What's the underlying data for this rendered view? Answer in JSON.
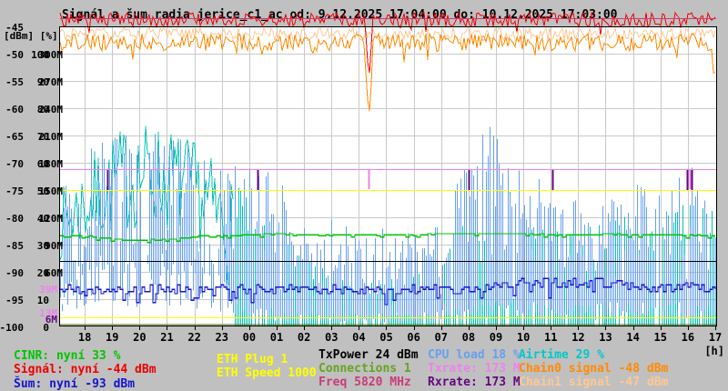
{
  "title": "Signál a šum radia jerice_c1_ac od: 9.12.2025 17:04:00 do: 10.12.2025 17:03:00",
  "colors": {
    "background": "#c0c0c0",
    "plot_background": "#ffffff",
    "grid": "#c9c9c9",
    "frame": "#000000",
    "signal_red": "#ee0000",
    "noise_blue": "#1515cc",
    "cinr_green": "#00c400",
    "cpu_blue": "#66a0f0",
    "airtime_teal": "#00c0b4",
    "eth_yellow": "#ffff00",
    "txpower_black": "#000000",
    "connections_green": "#64a41e",
    "connections_line": "#4a6b00",
    "freq_crimson": "#cc3a78",
    "txrate_violet": "#ee82ee",
    "rxrate_purple": "#65067f",
    "chain0_orange": "#ff8a00",
    "chain1_peach": "#ffc894"
  },
  "y_axis": {
    "header": "[dBm] [%]",
    "rows": [
      {
        "dbm": "-45",
        "pct": "",
        "m": ""
      },
      {
        "dbm": "-50",
        "pct": "100",
        "m": "300M"
      },
      {
        "dbm": "-55",
        "pct": "90",
        "m": "270M"
      },
      {
        "dbm": "-60",
        "pct": "80",
        "m": "240M"
      },
      {
        "dbm": "-65",
        "pct": "70",
        "m": "210M"
      },
      {
        "dbm": "-70",
        "pct": "60",
        "m": "180M"
      },
      {
        "dbm": "-75",
        "pct": "50",
        "m": "150M"
      },
      {
        "dbm": "-80",
        "pct": "40",
        "m": "120M"
      },
      {
        "dbm": "-85",
        "pct": "30",
        "m": "90M"
      },
      {
        "dbm": "-90",
        "pct": "20",
        "m": "60M"
      },
      {
        "dbm": "-95",
        "pct": "10",
        "m": ""
      },
      {
        "dbm": "-100",
        "pct": "0",
        "m": ""
      }
    ],
    "special_marks": [
      {
        "label": "39M",
        "value_m": 39,
        "color": "#ee82ee"
      },
      {
        "label": "13M",
        "value_m": 13,
        "color": "#ee82ee"
      },
      {
        "label": "6M",
        "value_m": 6,
        "color": "#65067f"
      }
    ]
  },
  "x_axis": {
    "labels": [
      "18",
      "19",
      "20",
      "21",
      "22",
      "23",
      "00",
      "01",
      "02",
      "03",
      "04",
      "05",
      "06",
      "07",
      "08",
      "09",
      "10",
      "11",
      "12",
      "13",
      "14",
      "15",
      "16",
      "17"
    ],
    "unit": "[h]"
  },
  "legend": {
    "items": [
      {
        "text": "CINR: nyní 33 %",
        "color": "#00c400"
      },
      {
        "text": "Signál: nyní -44 dBm",
        "color": "#ee0000"
      },
      {
        "text": "Šum: nyní -93 dBm",
        "color": "#1515cc"
      },
      {
        "text": "ETH Plug 1",
        "color": "#ffff00"
      },
      {
        "text": "ETH Speed 1000",
        "color": "#ffff00"
      },
      {
        "text": "TxPower 24 dBm",
        "color": "#000000"
      },
      {
        "text": "Connections 1",
        "color": "#64a41e"
      },
      {
        "text": "Freq 5820 MHz",
        "color": "#cc3a78"
      },
      {
        "text": "CPU load 18 %",
        "color": "#66a0f0"
      },
      {
        "text": "Txrate: 173 M",
        "color": "#ee82ee"
      },
      {
        "text": "Rxrate: 173 M",
        "color": "#65067f"
      },
      {
        "text": "Airtime 29 %",
        "color": "#00c8c8"
      },
      {
        "text": "Chain0 signal -48 dBm",
        "color": "#ff8a00"
      },
      {
        "text": "Chain1 signal -47 dBm",
        "color": "#ffc894"
      }
    ]
  },
  "chart_data": {
    "type": "line",
    "title": "Signál a šum radia jerice_c1_ac",
    "time_start": "9.12.2025 17:04:00",
    "time_end": "10.12.2025 17:03:00",
    "x_unit": "hours",
    "x_tick_labels": [
      "18",
      "19",
      "20",
      "21",
      "22",
      "23",
      "00",
      "01",
      "02",
      "03",
      "04",
      "05",
      "06",
      "07",
      "08",
      "09",
      "10",
      "11",
      "12",
      "13",
      "14",
      "15",
      "16",
      "17"
    ],
    "axes": {
      "dbm": {
        "min": -100,
        "max": -45,
        "label": "[dBm]"
      },
      "pct": {
        "min": 0,
        "max": 100,
        "label": "[%]"
      },
      "mbit": {
        "min": 0,
        "max": 300,
        "label": "M"
      }
    },
    "grid": true,
    "series": [
      {
        "name": "Airtime",
        "axis": "pct",
        "color": "#00c0b4",
        "style": "band-spikes",
        "now": 29,
        "band_until": 6.4,
        "hi": [
          50,
          62,
          72,
          76,
          74,
          68,
          58,
          45,
          38,
          25,
          20,
          16,
          18,
          20,
          30,
          45,
          55,
          45,
          38,
          40,
          45,
          42,
          38,
          55,
          40
        ],
        "lo": [
          24,
          28,
          33,
          36,
          34,
          30,
          18,
          0,
          0,
          0,
          0,
          0,
          0,
          0,
          0,
          0,
          0,
          0,
          0,
          0,
          0,
          0,
          0,
          0,
          0
        ]
      },
      {
        "name": "CPU load",
        "axis": "pct",
        "color": "#66a0f0",
        "style": "spikes",
        "now": 18,
        "hi": [
          55,
          68,
          72,
          70,
          72,
          66,
          60,
          60,
          55,
          38,
          40,
          36,
          38,
          34,
          42,
          70,
          75,
          60,
          48,
          46,
          52,
          55,
          48,
          62,
          40
        ],
        "lo": [
          20,
          25,
          28,
          26,
          28,
          24,
          18,
          8,
          6,
          5,
          5,
          5,
          5,
          5,
          6,
          8,
          10,
          10,
          8,
          8,
          9,
          9,
          8,
          10,
          6
        ]
      },
      {
        "name": "Šum",
        "axis": "dbm",
        "color": "#1515cc",
        "style": "noisy-steps",
        "now": -93,
        "jitter": 0.9,
        "hourly": [
          -93.2,
          -93.2,
          -93.4,
          -93.1,
          -93.2,
          -93.4,
          -93.1,
          -93.5,
          -93.3,
          -93.1,
          -93.3,
          -93.4,
          -93.2,
          -93.3,
          -93.1,
          -93.2,
          -92.3,
          -91.8,
          -92.0,
          -92.2,
          -91.9,
          -92.7,
          -93.0,
          -92.9,
          -93.1
        ]
      },
      {
        "name": "CINR",
        "axis": "pct",
        "color": "#00c400",
        "style": "steps",
        "now": 33,
        "hourly": [
          33,
          33,
          32,
          31.5,
          32,
          33,
          33,
          33.5,
          34,
          33.5,
          33.5,
          33.5,
          33.5,
          33.5,
          34,
          34,
          34,
          34,
          33.5,
          33.5,
          34,
          33.5,
          33.5,
          33.5,
          33
        ]
      },
      {
        "name": "ETH Speed",
        "axis": "mbit",
        "color": "#ffff00",
        "style": "flat",
        "value": 1000,
        "line_m": 150
      },
      {
        "name": "ETH Plug",
        "axis": "mbit",
        "color": "#ffff00",
        "style": "flat",
        "value": 1,
        "line_m": 10
      },
      {
        "name": "Connections",
        "axis": "mbit",
        "color": "#4a6b00",
        "style": "flat",
        "value": 1,
        "line_m": 2.5
      },
      {
        "name": "Rxrate",
        "axis": "mbit",
        "color": "#65067f",
        "style": "flat-dips",
        "value": 173,
        "dip_to": 150,
        "dips": [
          1.76,
          7.24,
          14.94,
          18.0,
          22.91,
          23.07
        ]
      },
      {
        "name": "Txrate",
        "axis": "mbit",
        "color": "#ee82ee",
        "style": "flat-dips",
        "value": 173,
        "dip_to": 151,
        "dips": [
          11.29,
          23.0
        ]
      },
      {
        "name": "TxPower",
        "axis": "pct",
        "color": "#000000",
        "style": "flat",
        "value": 24,
        "line_m": null
      },
      {
        "name": "Chain1 signal",
        "axis": "dbm",
        "color": "#ffc894",
        "style": "jagged",
        "now": -47,
        "jitter": 1.2,
        "hourly": [
          -46.4,
          -46.4,
          -46.4,
          -46.4,
          -46.4,
          -46.4,
          -46.4,
          -46.4,
          -46.4,
          -46.4,
          -46.4,
          -46.4,
          -46.4,
          -46.4,
          -46.4,
          -46.4,
          -46.4,
          -46.4,
          -46.4,
          -46.4,
          -46.4,
          -46.4,
          -46.4,
          -46.4,
          -46.4
        ],
        "events": []
      },
      {
        "name": "Chain0 signal",
        "axis": "dbm",
        "color": "#ff8a00",
        "style": "jagged",
        "now": -48,
        "jitter": 1.6,
        "spike_chance": 0.07,
        "spike_depth": 3,
        "hourly": [
          -47.9,
          -47.9,
          -47.9,
          -47.9,
          -47.9,
          -47.9,
          -47.9,
          -47.9,
          -47.9,
          -47.9,
          -47.9,
          -47.9,
          -47.9,
          -47.9,
          -47.9,
          -47.9,
          -47.9,
          -47.9,
          -47.9,
          -47.9,
          -47.9,
          -47.9,
          -47.9,
          -47.9,
          -47.9
        ],
        "events": [
          {
            "t": 11.3,
            "v": -62
          },
          {
            "t": 23.9,
            "v": -56
          }
        ]
      },
      {
        "name": "Signál",
        "axis": "dbm",
        "color": "#ee0000",
        "style": "jagged",
        "now": -44,
        "jitter": 1.3,
        "spike_chance": 0.05,
        "spike_depth": 2,
        "hourly": [
          -43.8,
          -43.8,
          -43.8,
          -43.8,
          -43.8,
          -43.8,
          -43.8,
          -43.8,
          -43.8,
          -43.8,
          -43.8,
          -43.8,
          -43.8,
          -43.8,
          -43.8,
          -43.8,
          -43.8,
          -43.8,
          -43.8,
          -43.8,
          -43.8,
          -43.8,
          -43.8,
          -43.8,
          -43.8
        ],
        "events": [
          {
            "t": 11.3,
            "v": -55
          }
        ]
      },
      {
        "name": "Freq",
        "axis": "mhz",
        "color": "#cc3a78",
        "style": "flat-top",
        "value": 5820
      }
    ]
  }
}
